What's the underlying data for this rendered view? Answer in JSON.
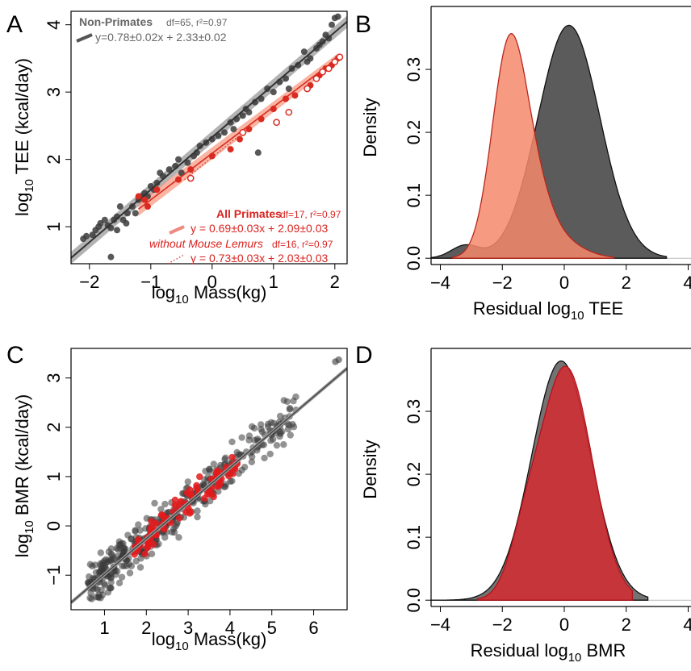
{
  "colors": {
    "nonprimate": "#333333",
    "primate_tee": "#d92b22",
    "primate_fill_tee": "#f6947a",
    "primate_bmr": "#e41a1c",
    "density_gray": "#5b5b5b",
    "density_orange": "#f4896b",
    "density_red": "#d42a2f"
  },
  "chart_data": [
    {
      "panel": "A",
      "type": "scatter",
      "xlabel_prefix": "log",
      "xlabel_sub": "10",
      "xlabel_main": "Mass(kg)",
      "ylabel_prefix": "log",
      "ylabel_sub": "10",
      "ylabel_main": "TEE (kcal/day)",
      "xlim": [
        -2.3,
        2.2
      ],
      "ylim": [
        0.45,
        4.2
      ],
      "xticks": [
        -2,
        -1,
        0,
        1,
        2
      ],
      "yticks": [
        1,
        2,
        3,
        4
      ],
      "legend": {
        "nonprimate_name": "Non-Primates",
        "nonprimate_stats": "df=65, r²=0.97",
        "nonprimate_eq": "y=0.78±0.02x + 2.33±0.02",
        "allprimates_name": "All Primates",
        "allprimates_stats": "df=17,  r²=0.97",
        "allprimates_eq": "y = 0.69±0.03x + 2.09±0.03",
        "nomouse_name": "without Mouse Lemurs",
        "nomouse_stats": "df=16, r²=0.97",
        "nomouse_eq": "y = 0.73±0.03x + 2.03±0.03"
      },
      "fits": {
        "nonprimate": {
          "slope": 0.78,
          "intercept": 2.33,
          "x": [
            -2.3,
            2.2
          ]
        },
        "allprimates": {
          "slope": 0.69,
          "intercept": 2.09,
          "x": [
            -1.2,
            2.05
          ]
        },
        "nomouse": {
          "slope": 0.73,
          "intercept": 2.03,
          "x": [
            -0.45,
            0.4
          ]
        }
      },
      "nonprimate_points": [
        [
          -2.1,
          0.82
        ],
        [
          -2.05,
          0.86
        ],
        [
          -1.95,
          0.88
        ],
        [
          -1.9,
          0.95
        ],
        [
          -1.85,
          1.0
        ],
        [
          -1.82,
          1.05
        ],
        [
          -1.75,
          1.1
        ],
        [
          -1.7,
          1.02
        ],
        [
          -1.65,
          0.98
        ],
        [
          -1.6,
          1.1
        ],
        [
          -1.55,
          1.15
        ],
        [
          -1.5,
          1.3
        ],
        [
          -1.45,
          1.1
        ],
        [
          -1.4,
          1.05
        ],
        [
          -1.38,
          1.2
        ],
        [
          -1.3,
          1.3
        ],
        [
          -1.25,
          1.2
        ],
        [
          -1.2,
          1.4
        ],
        [
          -1.15,
          1.45
        ],
        [
          -1.1,
          1.5
        ],
        [
          -1.05,
          1.45
        ],
        [
          -1.0,
          1.6
        ],
        [
          -0.95,
          1.55
        ],
        [
          -0.9,
          1.65
        ],
        [
          -0.85,
          1.8
        ],
        [
          -0.8,
          1.75
        ],
        [
          -0.7,
          1.85
        ],
        [
          -0.6,
          1.9
        ],
        [
          -0.5,
          1.8
        ],
        [
          -0.4,
          1.95
        ],
        [
          -0.3,
          2.05
        ],
        [
          -0.25,
          2.1
        ],
        [
          -0.2,
          2.2
        ],
        [
          -0.1,
          2.25
        ],
        [
          0.0,
          2.3
        ],
        [
          0.1,
          2.35
        ],
        [
          0.2,
          2.4
        ],
        [
          0.3,
          2.55
        ],
        [
          0.35,
          2.45
        ],
        [
          0.4,
          2.6
        ],
        [
          0.5,
          2.65
        ],
        [
          0.55,
          2.75
        ],
        [
          0.6,
          2.7
        ],
        [
          0.7,
          2.85
        ],
        [
          0.8,
          2.9
        ],
        [
          0.9,
          3.05
        ],
        [
          1.0,
          3.0
        ],
        [
          1.1,
          3.15
        ],
        [
          1.2,
          3.2
        ],
        [
          1.3,
          3.35
        ],
        [
          1.4,
          3.4
        ],
        [
          1.5,
          3.6
        ],
        [
          1.55,
          3.45
        ],
        [
          1.6,
          3.5
        ],
        [
          1.7,
          3.65
        ],
        [
          1.75,
          3.7
        ],
        [
          1.8,
          3.75
        ],
        [
          1.85,
          3.85
        ],
        [
          1.9,
          3.8
        ],
        [
          1.95,
          4.0
        ],
        [
          2.0,
          4.1
        ],
        [
          2.05,
          4.12
        ],
        [
          -1.65,
          0.55
        ],
        [
          0.75,
          2.1
        ],
        [
          -1.55,
          0.95
        ],
        [
          1.25,
          3.05
        ],
        [
          -0.55,
          2.0
        ]
      ],
      "primate_filled": [
        [
          -1.2,
          1.45
        ],
        [
          -1.1,
          1.4
        ],
        [
          -1.05,
          1.3
        ],
        [
          -0.9,
          1.55
        ],
        [
          -0.55,
          1.7
        ],
        [
          -0.35,
          1.85
        ],
        [
          0.0,
          2.05
        ],
        [
          0.3,
          2.15
        ],
        [
          0.45,
          2.3
        ],
        [
          0.6,
          2.45
        ],
        [
          0.8,
          2.6
        ],
        [
          1.0,
          2.75
        ],
        [
          1.2,
          2.9
        ],
        [
          1.35,
          2.95
        ],
        [
          1.6,
          3.1
        ],
        [
          1.75,
          3.25
        ],
        [
          1.85,
          3.35
        ],
        [
          1.95,
          3.4
        ],
        [
          2.05,
          3.5
        ]
      ],
      "primate_open": [
        [
          -0.35,
          1.72
        ],
        [
          0.5,
          2.4
        ],
        [
          1.05,
          2.55
        ],
        [
          1.25,
          2.7
        ],
        [
          1.55,
          3.05
        ],
        [
          1.7,
          3.2
        ],
        [
          1.8,
          3.3
        ],
        [
          1.9,
          3.35
        ],
        [
          2.0,
          3.45
        ],
        [
          2.08,
          3.52
        ]
      ]
    },
    {
      "panel": "B",
      "type": "area",
      "xlabel": "Residual log",
      "xlabel_sub": "10",
      "xlabel_main": "TEE",
      "ylabel": "Density",
      "xlim": [
        -4.3,
        4.3
      ],
      "ylim": [
        -0.01,
        0.4
      ],
      "xticks": [
        -4,
        -2,
        0,
        2,
        4
      ],
      "yticks": [
        0.0,
        0.1,
        0.2,
        0.3
      ],
      "ytick_labels": [
        "0.0",
        "0.1",
        "0.2",
        "0.3"
      ],
      "series": [
        {
          "name": "",
          "components": [
            [
              0.15,
              1.0,
              0.37,
              1.0
            ]
          ],
          "extra": [
            [
              -3.2,
              0.45,
              0.02
            ]
          ],
          "range": [
            -4.3,
            3.3
          ]
        },
        {
          "name": "",
          "components": [
            [
              -1.8,
              0.55,
              0.32,
              1.0
            ],
            [
              -1.0,
              0.55,
              0.08,
              1.0
            ]
          ],
          "extra": [
            [
              -0.3,
              0.8,
              0.03
            ]
          ],
          "range": [
            -3.6,
            1.6
          ]
        }
      ]
    },
    {
      "panel": "C",
      "type": "scatter",
      "xlabel_prefix": "log",
      "xlabel_sub": "10",
      "xlabel_main": "Mass(kg)",
      "ylabel_prefix": "log",
      "ylabel_sub": "10",
      "ylabel_main": "BMR (kcal/day)",
      "xlim": [
        0.2,
        6.8
      ],
      "ylim": [
        -1.7,
        3.6
      ],
      "xticks": [
        1,
        2,
        3,
        4,
        5,
        6
      ],
      "yticks": [
        -1,
        0,
        1,
        2,
        3
      ],
      "fit": {
        "slope": 0.72,
        "intercept": -1.7,
        "x": [
          0.2,
          6.8
        ]
      }
    },
    {
      "panel": "D",
      "type": "area",
      "xlabel": "Residual log",
      "xlabel_sub": "10",
      "xlabel_main": "BMR",
      "ylabel": "Density",
      "xlim": [
        -4.3,
        4.3
      ],
      "ylim": [
        -0.01,
        0.4
      ],
      "xticks": [
        -4,
        -2,
        0,
        2,
        4
      ],
      "yticks": [
        0.0,
        0.1,
        0.2,
        0.3
      ],
      "ytick_labels": [
        "0.0",
        "0.1",
        "0.2",
        "0.3"
      ],
      "series": [
        {
          "name": "",
          "components": [
            [
              -0.1,
              0.95,
              0.38,
              1.0
            ]
          ],
          "range": [
            -4.3,
            2.7
          ]
        },
        {
          "name": "",
          "components": [
            [
              0.05,
              0.85,
              0.37,
              1.0
            ],
            [
              -1.3,
              0.5,
              0.06,
              1.0
            ]
          ],
          "range": [
            -2.8,
            2.2
          ]
        }
      ]
    }
  ],
  "panel_labels": [
    "A",
    "B",
    "C",
    "D"
  ]
}
